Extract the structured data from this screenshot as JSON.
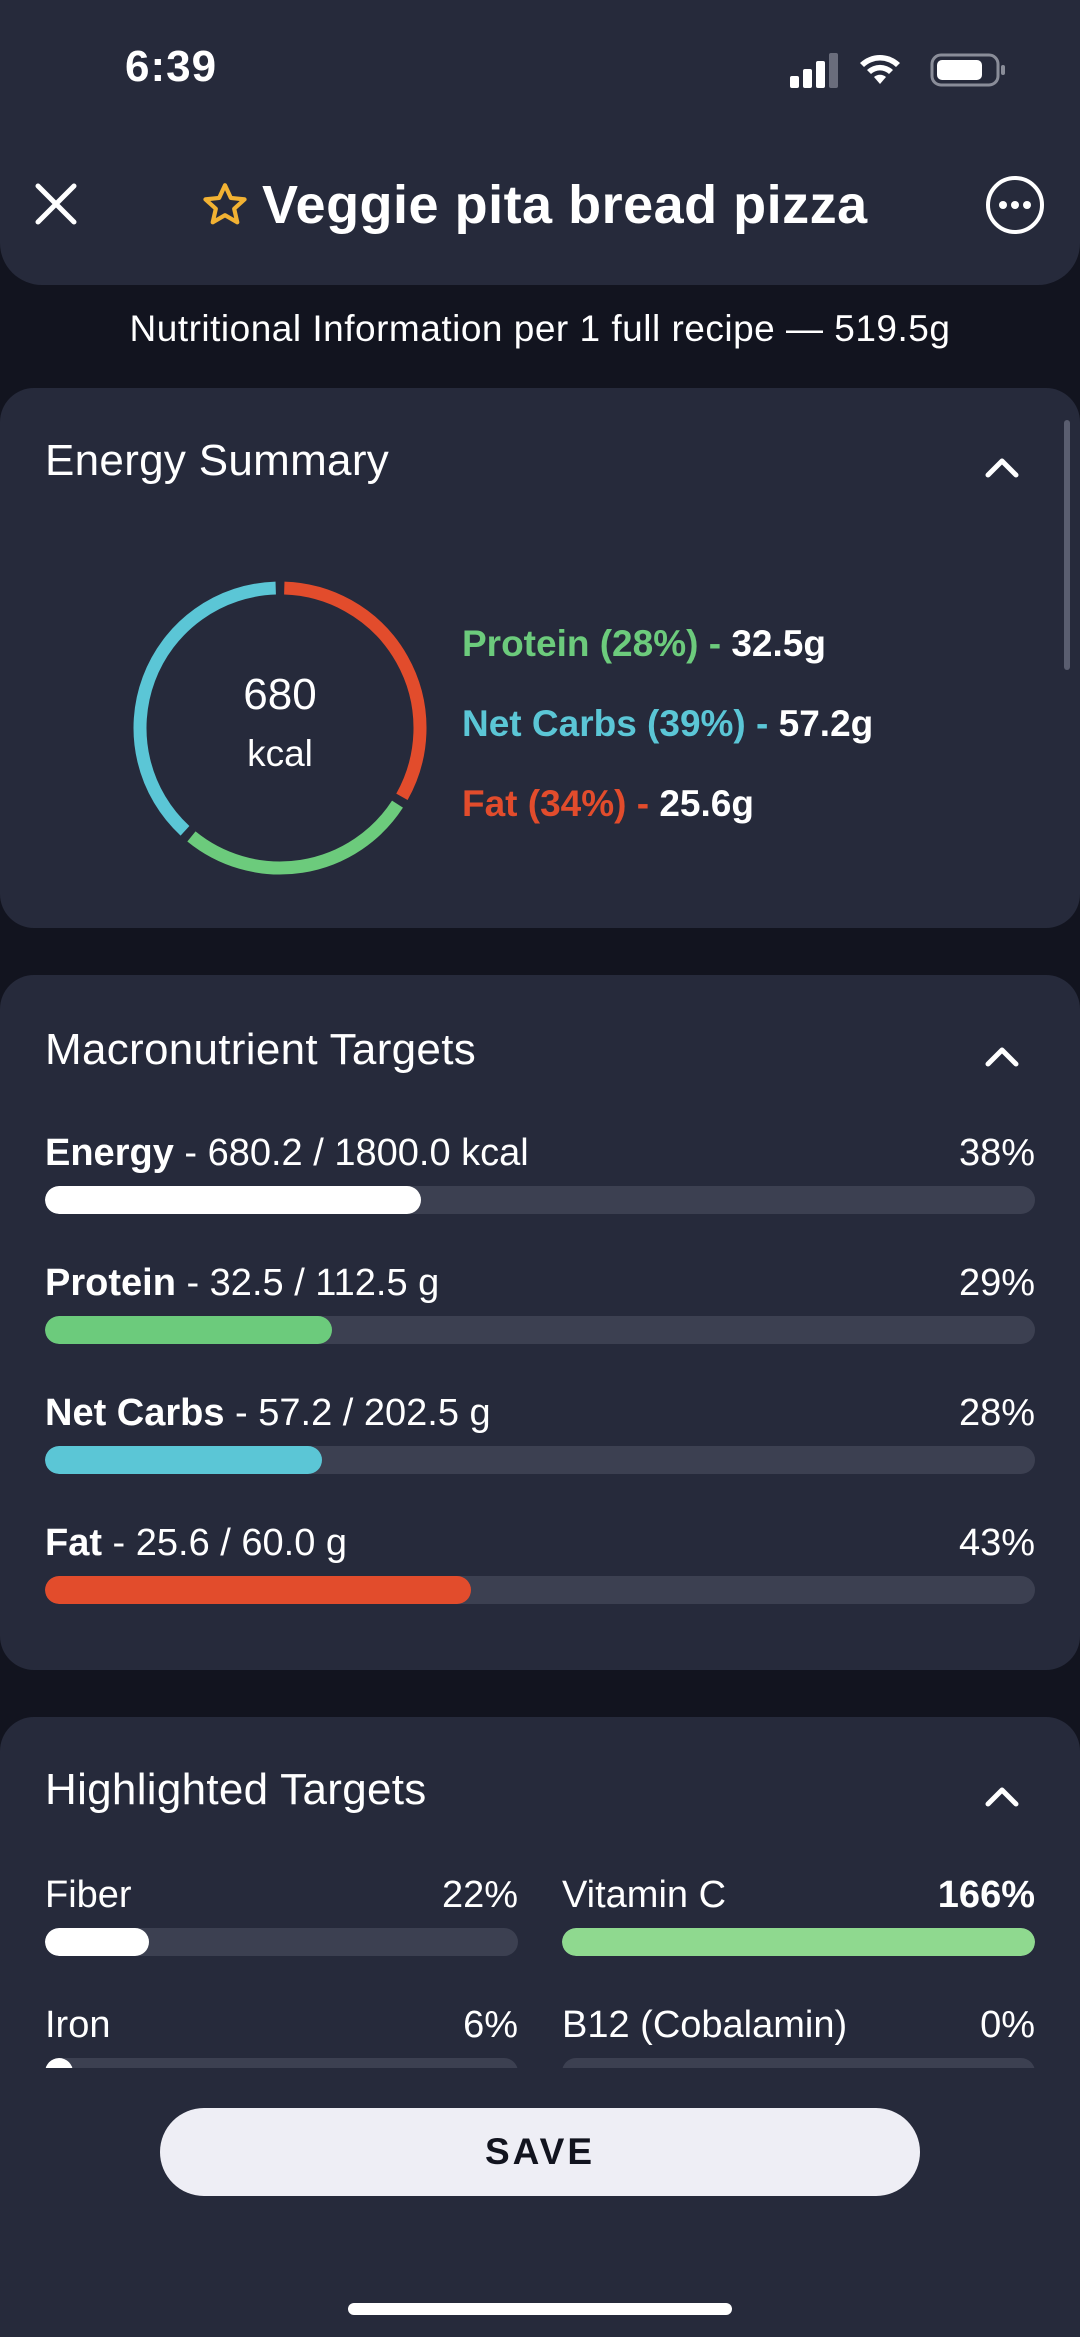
{
  "status_bar": {
    "time": "6:39"
  },
  "header": {
    "title": "Veggie pita bread pizza"
  },
  "subheader": "Nutritional Information per 1 full recipe  — 519.5g",
  "colors": {
    "protein": "#6ccb7c",
    "carbs": "#5bc6d6",
    "fat": "#e24c2c",
    "energy": "#ffffff",
    "star": "#f2b233"
  },
  "energy_summary": {
    "title": "Energy Summary",
    "kcal_value": "680",
    "kcal_unit": "kcal",
    "legend": [
      {
        "label": "Protein (28%) -",
        "amount": "32.5g",
        "percent": 28
      },
      {
        "label": "Net Carbs (39%) -",
        "amount": "57.2g",
        "percent": 39
      },
      {
        "label": "Fat (34%) -",
        "amount": "25.6g",
        "percent": 34
      }
    ]
  },
  "macro_targets": {
    "title": "Macronutrient Targets",
    "rows": [
      {
        "name": "Energy",
        "detail": " - 680.2 / 1800.0 kcal",
        "pct": "38%",
        "fill": 0.38
      },
      {
        "name": "Protein",
        "detail": " - 32.5 / 112.5 g",
        "pct": "29%",
        "fill": 0.29
      },
      {
        "name": "Net Carbs",
        "detail": " - 57.2 / 202.5 g",
        "pct": "28%",
        "fill": 0.28
      },
      {
        "name": "Fat",
        "detail": " - 25.6 / 60.0 g",
        "pct": "43%",
        "fill": 0.43
      }
    ]
  },
  "highlighted_targets": {
    "title": "Highlighted Targets",
    "items": [
      {
        "name": "Fiber",
        "pct": "22%",
        "fill": 0.22
      },
      {
        "name": "Vitamin C",
        "pct": "166%",
        "fill": 1.0
      },
      {
        "name": "Iron",
        "pct": "6%",
        "fill": 0.06
      },
      {
        "name": "B12 (Cobalamin)",
        "pct": "0%",
        "fill": 0.0
      }
    ]
  },
  "footer": {
    "save_label": "SAVE"
  }
}
